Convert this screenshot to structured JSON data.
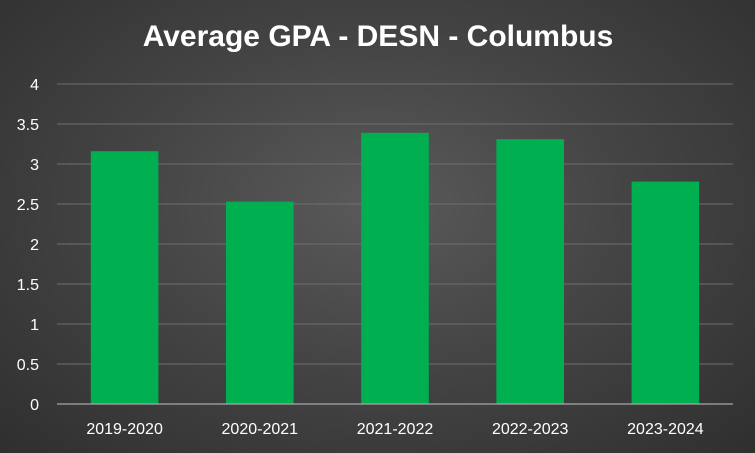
{
  "chart_data": {
    "type": "bar",
    "title": "Average GPA - DESN - Columbus",
    "xlabel": "",
    "ylabel": "",
    "categories": [
      "2019-2020",
      "2020-2021",
      "2021-2022",
      "2022-2023",
      "2023-2024"
    ],
    "values": [
      3.16,
      2.53,
      3.39,
      3.31,
      2.78
    ],
    "ylim": [
      0,
      4
    ],
    "yticks": [
      "0",
      "0.5",
      "1",
      "1.5",
      "2",
      "2.5",
      "3",
      "3.5",
      "4"
    ],
    "grid": "horizontal",
    "legend": "none",
    "bar_color": "#00b050"
  }
}
